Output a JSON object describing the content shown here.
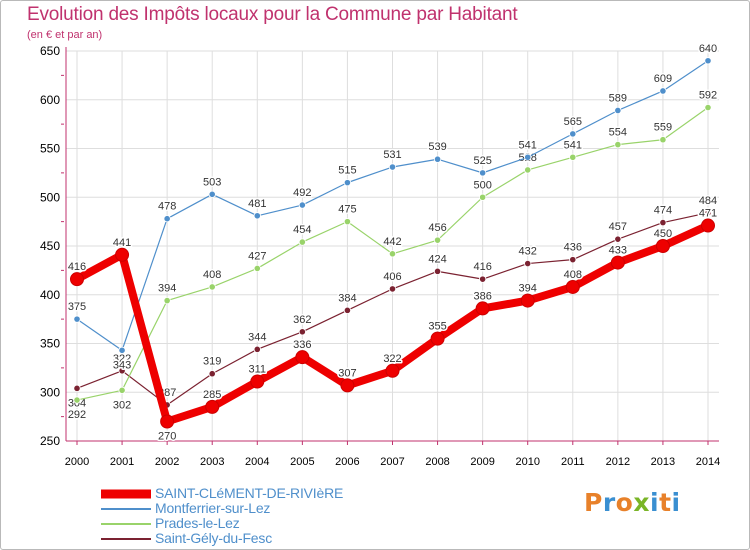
{
  "header": {
    "title": "Evolution des Impôts locaux pour la Commune par Habitant",
    "subtitle": "(en € et par an)"
  },
  "logo": {
    "text": "Proxiti",
    "colors": [
      "#e8812a",
      "#3a8fd1",
      "#e8812a",
      "#7ab527",
      "#3a8fd1",
      "#e8812a",
      "#3a8fd1"
    ]
  },
  "colors": {
    "title": "#c0326e",
    "axis": "#c0326e",
    "grid": "#dedede",
    "label": "#000000"
  },
  "chart_data": {
    "type": "line",
    "title": "Evolution des Impôts locaux pour la Commune par Habitant",
    "subtitle": "(en € et par an)",
    "x": [
      "2000",
      "2001",
      "2002",
      "2003",
      "2004",
      "2005",
      "2006",
      "2007",
      "2008",
      "2009",
      "2010",
      "2011",
      "2012",
      "2013",
      "2014"
    ],
    "yticks": [
      250,
      300,
      350,
      400,
      450,
      500,
      550,
      600,
      650
    ],
    "ylim": [
      250,
      650
    ],
    "grid": true,
    "legend_position": "bottom-left",
    "series": [
      {
        "name": "Montferrier-sur-Lez",
        "color": "#4f8fcb",
        "values": [
          375,
          343,
          478,
          503,
          481,
          492,
          515,
          531,
          539,
          525,
          541,
          565,
          589,
          609,
          640
        ]
      },
      {
        "name": "Prades-le-Lez",
        "color": "#99d36a",
        "values": [
          292,
          302,
          394,
          408,
          427,
          454,
          475,
          442,
          456,
          500,
          528,
          541,
          554,
          559,
          592
        ]
      },
      {
        "name": "Saint-Gély-du-Fesc",
        "color": "#7b2231",
        "values": [
          304,
          322,
          287,
          319,
          344,
          362,
          384,
          406,
          424,
          416,
          432,
          436,
          457,
          474,
          484
        ]
      },
      {
        "name": "SAINT-CLéMENT-DE-RIVIèRE",
        "color": "#ee0000",
        "values": [
          416,
          441,
          270,
          285,
          311,
          336,
          307,
          322,
          355,
          386,
          394,
          408,
          433,
          450,
          471
        ]
      }
    ]
  }
}
